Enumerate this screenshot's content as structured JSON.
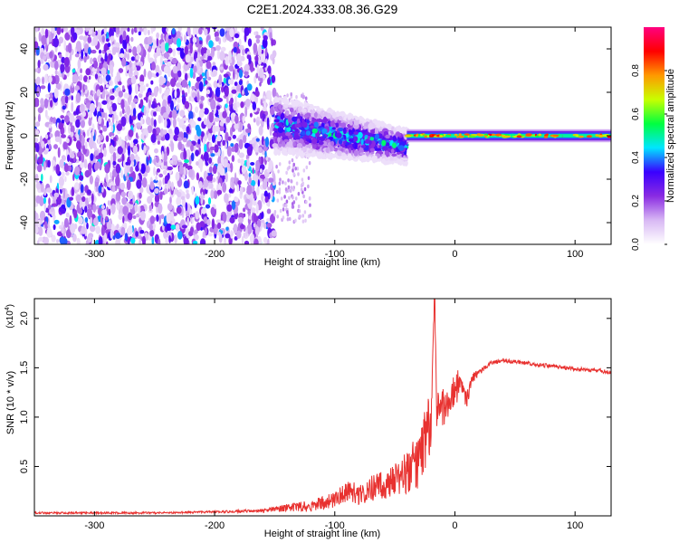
{
  "title": "C2E1.2024.333.08.36.G29",
  "chart_data": [
    {
      "type": "heatmap",
      "name": "spectrogram",
      "xlabel": "Height of straight line (km)",
      "ylabel": "Frequency (Hz)",
      "xlim": [
        -350,
        130
      ],
      "ylim": [
        -50,
        50
      ],
      "x_ticks": [
        -300,
        -200,
        -100,
        0,
        100
      ],
      "y_ticks": [
        -40,
        -20,
        0,
        20,
        40
      ],
      "grid": false,
      "colorbar": {
        "label": "Normalized spectral amplitude",
        "range": [
          0,
          1
        ],
        "ticks": [
          0.0,
          0.2,
          0.4,
          0.6,
          0.8
        ],
        "tick_labels": [
          "0.0",
          "0.2",
          "0.4",
          "0.6",
          "0.8"
        ],
        "colors": [
          "#ffffff",
          "#d8b8f4",
          "#8a2be2",
          "#3a00ff",
          "#00e5ff",
          "#00ff40",
          "#c8ff00",
          "#ff9900",
          "#ff0000",
          "#ff0080"
        ]
      },
      "regions": [
        {
          "x_range": [
            -350,
            -150
          ],
          "f_range": [
            -50,
            50
          ],
          "amplitude": 0.15,
          "description_level": "low"
        },
        {
          "x_range": [
            -150,
            -40
          ],
          "f_center": [
            5,
            -5
          ],
          "f_halfwidth": [
            10,
            6
          ],
          "amplitude": 0.4
        },
        {
          "x_range": [
            -40,
            130
          ],
          "f_center": [
            0,
            0
          ],
          "f_halfwidth": [
            3,
            2
          ],
          "amplitude": 0.6
        }
      ]
    },
    {
      "type": "line",
      "name": "snr",
      "xlabel": "Height of straight line (km)",
      "ylabel": "SNR (10 * v/v)",
      "scale_label": "(x10",
      "scale_exp": "4",
      "scale_suffix": ")",
      "xlim": [
        -350,
        130
      ],
      "ylim": [
        0,
        2.2
      ],
      "x_ticks": [
        -300,
        -200,
        -100,
        0,
        100
      ],
      "y_ticks": [
        0.5,
        1.0,
        1.5,
        2.0
      ],
      "y_tick_labels": [
        "0.5",
        "1.0",
        "1.5",
        "2.0"
      ],
      "grid": false,
      "series": [
        {
          "color": "#e8312f",
          "x": [
            -350,
            -300,
            -250,
            -200,
            -160,
            -140,
            -120,
            -100,
            -90,
            -80,
            -70,
            -60,
            -50,
            -40,
            -30,
            -25,
            -20,
            -17,
            -15,
            -12,
            -10,
            -5,
            0,
            5,
            10,
            15,
            20,
            25,
            30,
            40,
            50,
            60,
            70,
            80,
            90,
            100,
            110,
            120,
            130
          ],
          "y": [
            0.03,
            0.03,
            0.03,
            0.04,
            0.05,
            0.08,
            0.1,
            0.16,
            0.25,
            0.22,
            0.28,
            0.3,
            0.35,
            0.45,
            0.55,
            0.8,
            0.9,
            2.2,
            0.95,
            1.05,
            1.1,
            1.2,
            1.3,
            1.35,
            1.2,
            1.4,
            1.45,
            1.5,
            1.55,
            1.57,
            1.56,
            1.55,
            1.53,
            1.52,
            1.5,
            1.49,
            1.48,
            1.47,
            1.45
          ],
          "noise": [
            0.01,
            0.01,
            0.01,
            0.01,
            0.02,
            0.04,
            0.06,
            0.08,
            0.1,
            0.12,
            0.13,
            0.15,
            0.18,
            0.22,
            0.28,
            0.32,
            0.35,
            0.0,
            0.3,
            0.25,
            0.22,
            0.2,
            0.18,
            0.15,
            0.1,
            0.05,
            0.03,
            0.02,
            0.02,
            0.02,
            0.02,
            0.02,
            0.02,
            0.02,
            0.02,
            0.02,
            0.02,
            0.02,
            0.02
          ]
        }
      ]
    }
  ]
}
